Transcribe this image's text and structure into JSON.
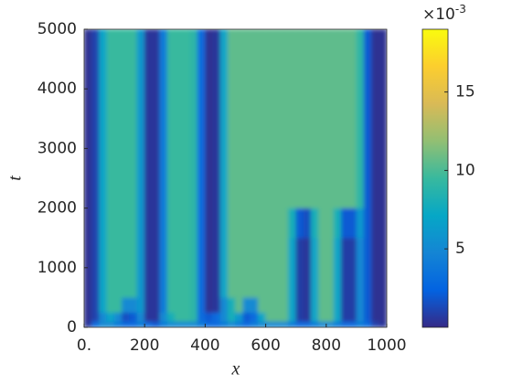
{
  "chart_data": {
    "type": "heatmap",
    "xlabel": "x",
    "ylabel": "t",
    "xbins": [
      0,
      25,
      50,
      75,
      100,
      125,
      150,
      175,
      200,
      225,
      250,
      275,
      300,
      325,
      350,
      375,
      400,
      425,
      450,
      475,
      500,
      525,
      550,
      575,
      600,
      625,
      650,
      675,
      700,
      725,
      750,
      775,
      800,
      825,
      850,
      875,
      900,
      925,
      950,
      975,
      1000
    ],
    "tbins": [
      0,
      100,
      250,
      500,
      1000,
      1500,
      2000,
      2500,
      5000
    ],
    "z": [
      [
        0.5,
        3,
        5,
        5,
        4,
        3,
        3,
        4,
        3,
        2,
        4,
        5,
        5,
        5,
        5,
        4,
        3,
        3,
        4,
        5,
        4,
        3,
        4,
        5,
        5,
        5,
        5,
        4,
        3,
        3,
        4,
        5,
        5,
        4,
        3,
        3,
        4,
        3,
        1,
        0.5
      ],
      [
        0.3,
        1,
        5,
        7,
        5,
        1.5,
        2,
        5,
        0.5,
        0.5,
        5,
        8,
        9.5,
        9.5,
        9,
        3,
        2,
        3,
        5,
        8,
        6,
        2,
        3,
        7,
        10.5,
        10.5,
        10.5,
        7,
        0.8,
        0.5,
        7,
        10.5,
        10.5,
        7,
        0.8,
        0.8,
        5,
        2,
        0.3,
        0.3
      ],
      [
        0.3,
        1,
        7,
        9.5,
        9.5,
        5,
        5,
        6,
        0.5,
        0.5,
        4,
        9.5,
        9.5,
        9.5,
        9,
        3,
        0.3,
        0.5,
        5,
        8,
        10.5,
        5,
        5,
        10.5,
        10.5,
        10.5,
        10.5,
        7,
        0.8,
        0.5,
        7,
        10.5,
        10.5,
        7,
        0.8,
        0.8,
        5,
        2,
        0.3,
        0.3
      ],
      [
        0.3,
        1,
        7,
        9.5,
        9.5,
        9.5,
        9.5,
        6,
        0.5,
        0.5,
        4,
        9.5,
        9.5,
        9.5,
        9,
        3,
        0.3,
        0.5,
        7,
        10.5,
        10.5,
        10.5,
        10.5,
        10.5,
        10.5,
        10.5,
        10.5,
        7,
        0.8,
        0.5,
        7,
        10.5,
        10.5,
        7,
        0.8,
        0.8,
        5,
        2,
        0.3,
        0.3
      ],
      [
        0.3,
        1,
        7,
        9.5,
        9.5,
        9.5,
        9.5,
        6,
        0.5,
        0.5,
        4,
        9.5,
        9.5,
        9.5,
        9,
        3,
        0.3,
        0.5,
        7,
        10.5,
        10.5,
        10.5,
        10.5,
        10.5,
        10.5,
        10.5,
        10.5,
        7,
        0.8,
        0.5,
        7,
        10.5,
        10.5,
        7,
        0.8,
        0.8,
        5,
        2,
        0.3,
        0.3
      ],
      [
        0.3,
        1,
        7,
        9.5,
        9.5,
        9.5,
        9.5,
        6,
        0.5,
        0.5,
        4,
        9.5,
        9.5,
        9.5,
        9,
        3,
        0.3,
        0.5,
        7,
        10.5,
        10.5,
        10.5,
        10.5,
        10.5,
        10.5,
        10.5,
        10.5,
        8,
        2,
        1.5,
        8,
        10.5,
        10.5,
        8,
        2,
        2,
        6,
        2,
        0.3,
        0.3
      ],
      [
        0.3,
        1,
        7,
        9.5,
        9.5,
        9.5,
        9.5,
        6,
        0.5,
        0.5,
        4,
        9.5,
        9.5,
        9.5,
        9,
        3,
        0.3,
        0.5,
        7,
        10.5,
        10.5,
        10.5,
        10.5,
        10.5,
        10.5,
        10.5,
        10.5,
        10.5,
        10.5,
        10.5,
        10.5,
        10.5,
        10.5,
        10.5,
        10.5,
        10.5,
        9,
        2,
        0.3,
        0.3
      ],
      [
        0.3,
        1,
        7,
        9.5,
        9.5,
        9.5,
        9.5,
        6,
        0.5,
        0.5,
        4,
        9.5,
        9.5,
        9.5,
        9,
        3,
        0.3,
        0.5,
        7,
        10.5,
        10.5,
        10.5,
        10.5,
        10.5,
        10.5,
        10.5,
        10.5,
        10.5,
        10.5,
        10.5,
        10.5,
        10.5,
        10.5,
        10.5,
        10.5,
        10.5,
        9,
        2,
        0.3,
        0.3
      ]
    ],
    "xlim": [
      0,
      1000
    ],
    "xticks": [
      {
        "value": 0,
        "label": "0."
      },
      200,
      400,
      600,
      800,
      1000
    ],
    "ylim": [
      0,
      5000
    ],
    "yticks": [
      0,
      1000,
      2000,
      3000,
      4000,
      5000
    ],
    "clim": [
      0,
      19
    ],
    "cticks": [
      5,
      10,
      15
    ],
    "colorbar_scale": {
      "base": "×10",
      "exponent": "-3"
    },
    "colorscale": [
      "#352a87",
      "#0363e1",
      "#1485d4",
      "#06a7c6",
      "#38b99e",
      "#92bf73",
      "#d9ba56",
      "#fcce2e",
      "#f9fb0e"
    ]
  }
}
